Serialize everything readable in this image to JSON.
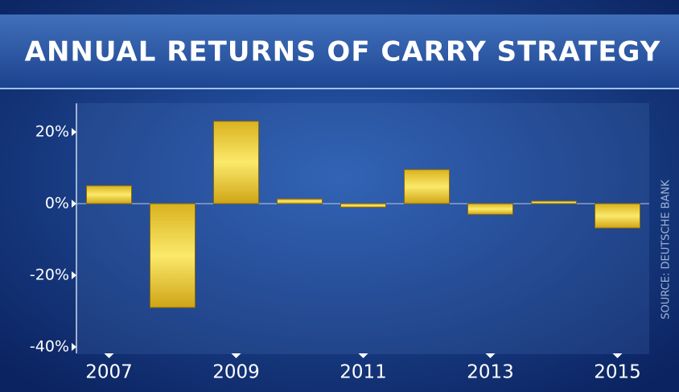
{
  "chart_data": {
    "type": "bar",
    "title": "ANNUAL RETURNS OF CARRY STRATEGY",
    "source": "SOURCE: DEUTSCHE BANK",
    "categories": [
      "2007",
      null,
      "2009",
      null,
      "2011",
      null,
      "2013",
      null,
      "2015"
    ],
    "values": [
      5,
      -29,
      23,
      1.3,
      -1,
      9.5,
      -3,
      0.7,
      -6.8
    ],
    "color": "#f2d43a",
    "ylim": [
      -40,
      28
    ],
    "yticks": [
      {
        "value": 20,
        "label": "20%"
      },
      {
        "value": 0,
        "label": "0%"
      },
      {
        "value": -20,
        "label": "-20%"
      },
      {
        "value": -40,
        "label": "-40%"
      }
    ]
  }
}
